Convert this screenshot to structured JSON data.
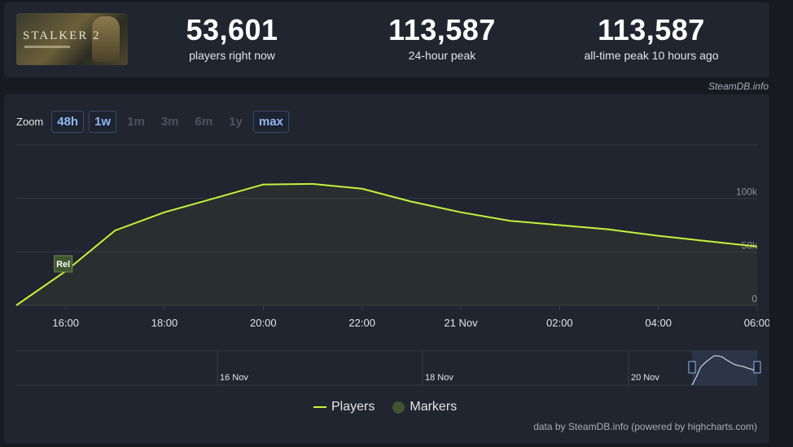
{
  "game": {
    "logo_text": "STALKER 2",
    "icon": "game-capsule-image"
  },
  "stats": [
    {
      "value": "53,601",
      "label": "players right now"
    },
    {
      "value": "113,587",
      "label": "24-hour peak"
    },
    {
      "value": "113,587",
      "label": "all-time peak 10 hours ago"
    }
  ],
  "credit": "SteamDB.info",
  "zoom": {
    "label": "Zoom",
    "options": [
      {
        "label": "48h",
        "active": true
      },
      {
        "label": "1w",
        "active": true
      },
      {
        "label": "1m",
        "active": false
      },
      {
        "label": "3m",
        "active": false
      },
      {
        "label": "6m",
        "active": false
      },
      {
        "label": "1y",
        "active": false
      },
      {
        "label": "max",
        "active": true
      }
    ]
  },
  "chart_data": {
    "type": "line",
    "series": [
      {
        "name": "Players",
        "color": "#c8f23b",
        "x": [
          "15:00",
          "16:00",
          "17:00",
          "18:00",
          "19:00",
          "20:00",
          "21:00",
          "22:00",
          "23:00",
          "00:00",
          "01:00",
          "02:00",
          "03:00",
          "04:00",
          "05:00",
          "06:00"
        ],
        "values": [
          0,
          32000,
          70000,
          87000,
          100000,
          113000,
          113500,
          109000,
          97000,
          87000,
          79000,
          75000,
          71000,
          65000,
          60000,
          55000
        ]
      }
    ],
    "x_tick_labels": [
      "16:00",
      "18:00",
      "20:00",
      "22:00",
      "21 Nov",
      "02:00",
      "04:00",
      "06:00"
    ],
    "y_tick_labels": [
      "0",
      "50k",
      "100k"
    ],
    "ylim": [
      0,
      150000
    ],
    "grid": true,
    "marker": {
      "label": "Rel",
      "x": "16:00"
    },
    "navigator_labels": [
      "16 Nov",
      "18 Nov",
      "20 Nov"
    ],
    "legend": [
      {
        "name": "Players"
      },
      {
        "name": "Markers",
        "color": "#3f5530"
      }
    ]
  },
  "footer": "data by SteamDB.info (powered by highcharts.com)"
}
